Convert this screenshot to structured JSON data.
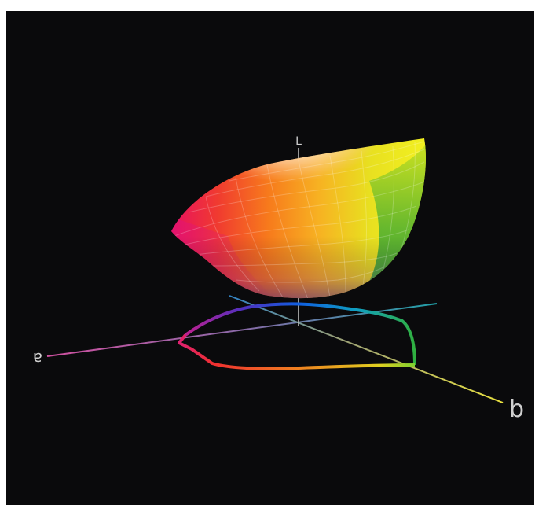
{
  "diagram": {
    "type": "3d-color-gamut",
    "background_color": "#0a0a0c",
    "axes": [
      {
        "id": "L",
        "label": "L",
        "color": "#cfcfcf"
      },
      {
        "id": "a",
        "label": "a",
        "color": "#c050a0"
      },
      {
        "id": "b",
        "label": "b",
        "color": "#d8d040"
      }
    ],
    "gamut_colors": {
      "white": "#ffffff",
      "yellow": "#f0f020",
      "green": "#10a040",
      "orange": "#f06010",
      "red": "#e01040",
      "magenta": "#e02080",
      "violet": "#6030c0",
      "blue": "#1060e0",
      "cyan": "#10b0c0"
    }
  }
}
